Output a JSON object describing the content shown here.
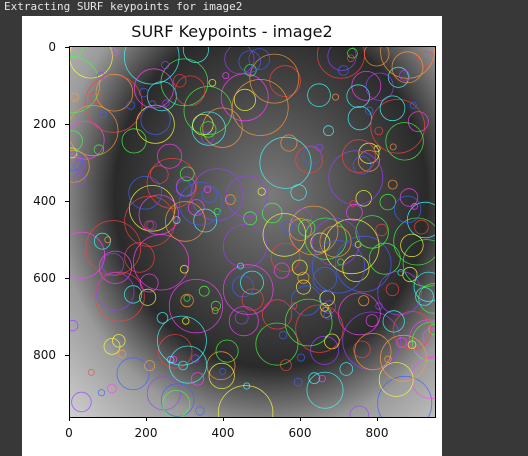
{
  "console": {
    "status_text": "Extracting SURF keypoints for image2"
  },
  "figure": {
    "title": "SURF Keypoints - image2",
    "x_ticks": [
      "0",
      "200",
      "400",
      "600",
      "800"
    ],
    "y_ticks": [
      "0",
      "200",
      "400",
      "600",
      "800"
    ],
    "keypoint_colors": [
      "#ff4040",
      "#40ff40",
      "#4060ff",
      "#ff40ff",
      "#40ffff",
      "#ffff40",
      "#ff9a40",
      "#9a40ff"
    ]
  }
}
